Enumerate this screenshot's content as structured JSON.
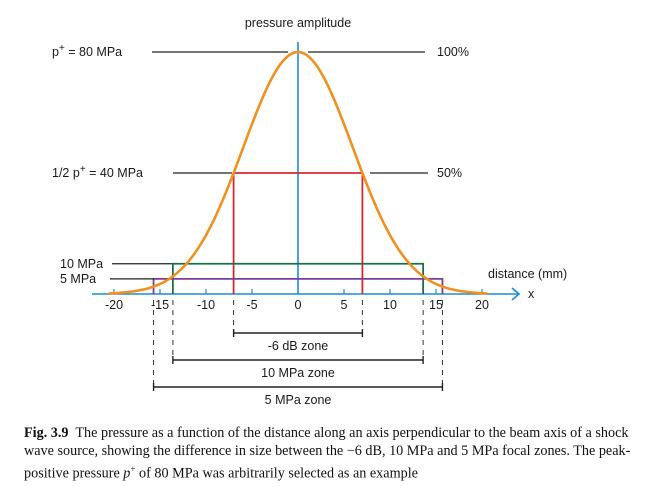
{
  "chart_data": {
    "type": "line",
    "title": "pressure amplitude",
    "xlabel": "distance (mm)",
    "x_axis_symbol": "x",
    "xlim": [
      -22,
      22
    ],
    "ylim": [
      0,
      80
    ],
    "x_ticks": [
      -20,
      -15,
      -10,
      -5,
      0,
      5,
      10,
      15,
      20
    ],
    "x_tick_labels": [
      "-20",
      "-15",
      "-10",
      "-5",
      "0",
      "5",
      "10",
      "15",
      "20"
    ],
    "curve": {
      "name": "pressure profile",
      "shape": "gaussian",
      "peak_mpa": 80,
      "half_width_at_40mpa_mm": 7,
      "color": "#f0901e"
    },
    "levels": [
      {
        "name": "peak",
        "label_left": "p",
        "label_left_sup": "+",
        "label_left_rest": " = 80 MPa",
        "label_right": "100%",
        "value_mpa": 80
      },
      {
        "name": "half",
        "label_left": "1/2 p",
        "label_left_sup": "+",
        "label_left_rest": " = 40 MPa",
        "label_right": "50%",
        "value_mpa": 40,
        "half_width_mm": 7,
        "color": "#d42a2e"
      },
      {
        "name": "ten",
        "label_left": "10 MPa",
        "value_mpa": 10,
        "half_width_mm": 13.6,
        "color": "#17704a"
      },
      {
        "name": "five",
        "label_left": "5 MPa",
        "value_mpa": 5,
        "half_width_mm": 15.7,
        "color": "#7d3c98"
      }
    ],
    "zones": [
      {
        "label": "-6 dB zone",
        "from_mm": -7,
        "to_mm": 7
      },
      {
        "label": "10 MPa zone",
        "from_mm": -13.6,
        "to_mm": 13.6
      },
      {
        "label": "5 MPa zone",
        "from_mm": -15.7,
        "to_mm": 15.7
      }
    ],
    "axis_color": "#1a8fd0"
  },
  "caption": {
    "fig_label": "Fig. 3.9",
    "text_before_p": "The pressure as a function of the distance along an axis perpendicular to the beam axis of a shock wave source, showing the difference in size between the −6 dB, 10 MPa and 5 MPa focal zones. The peak-positive pressure ",
    "p_symbol": "p",
    "p_sup": "+",
    "text_after_p": " of 80 MPa was arbitrarily selected as an example"
  }
}
